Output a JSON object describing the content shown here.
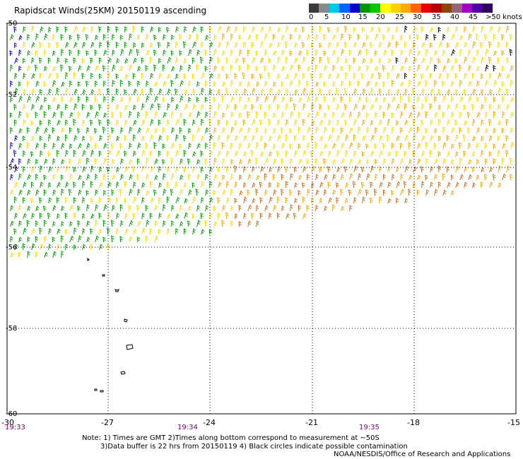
{
  "title": "Rapidscat Winds(25KM) 20150119 ascending",
  "colorbar": {
    "tick_labels": [
      "0",
      "5",
      "10",
      "15",
      "20",
      "25",
      "30",
      "35",
      "40",
      "45",
      ">50 knots"
    ],
    "colors": [
      "#3a3a3a",
      "#8a8a8a",
      "#00c8e6",
      "#0064ff",
      "#0000cc",
      "#009600",
      "#00c800",
      "#ffff00",
      "#ffd200",
      "#ffaa00",
      "#ff6400",
      "#e60000",
      "#b40000",
      "#8c4600",
      "#966478",
      "#a000c8",
      "#5000a0",
      "#320064"
    ]
  },
  "axes": {
    "lat_labels": [
      "-50",
      "-52",
      "-54",
      "-56",
      "-58",
      "-60"
    ],
    "lon_labels": [
      "-30",
      "-27",
      "-24",
      "-21",
      "-18",
      "-15"
    ],
    "time_labels": [
      "19:33",
      "19:34",
      "19:35"
    ]
  },
  "wind_colors": {
    "blue": "#0000e6",
    "green": "#00a000",
    "yellow": "#ffd700",
    "orange": "#ffa500",
    "dark_orange": "#d2691e",
    "black": "#000000"
  },
  "notes": {
    "line1": "Note: 1) Times are GMT 2)Times along bottom correspond to measurement at ~50S",
    "line2": "3)Data buffer is 22 hrs from 20150119 4) Black circles indicate possible contamination"
  },
  "credit": "NOAA/NESDIS/Office of Research and Applications"
}
